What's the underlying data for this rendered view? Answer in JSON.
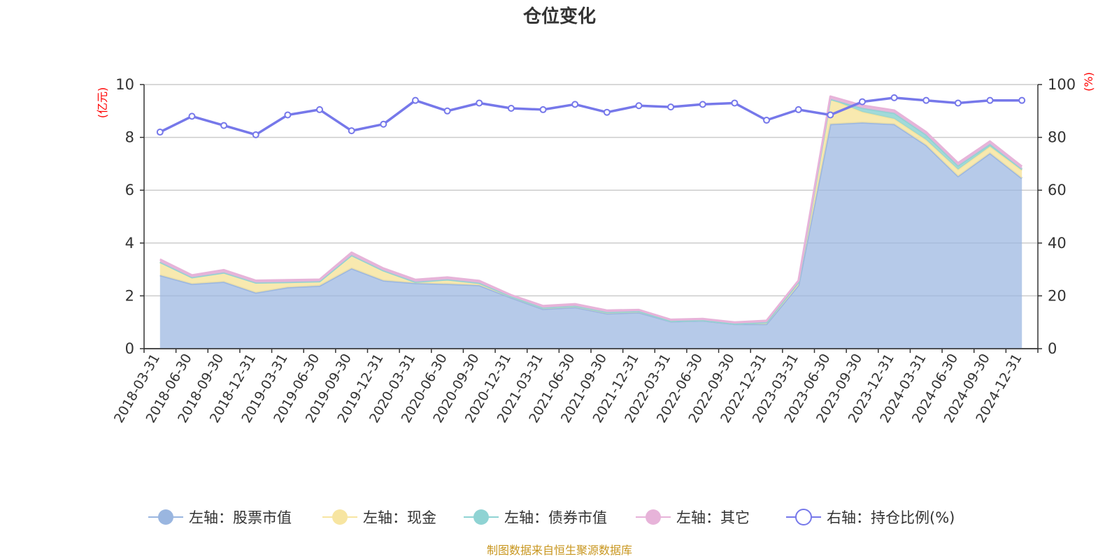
{
  "chart_data": {
    "type": "area",
    "title": "仓位变化",
    "left_axis_unit": "(亿元)",
    "right_axis_unit": "(%)",
    "left_ylim": [
      0,
      10
    ],
    "left_ticks": [
      "0",
      "2",
      "4",
      "6",
      "8",
      "10"
    ],
    "right_ylim": [
      0,
      100
    ],
    "right_ticks": [
      "0",
      "20",
      "40",
      "60",
      "80",
      "100"
    ],
    "categories": [
      "2018-03-31",
      "2018-06-30",
      "2018-09-30",
      "2018-12-31",
      "2019-03-31",
      "2019-06-30",
      "2019-09-30",
      "2019-12-31",
      "2020-03-31",
      "2020-06-30",
      "2020-09-30",
      "2020-12-31",
      "2021-03-31",
      "2021-06-30",
      "2021-09-30",
      "2021-12-31",
      "2022-03-31",
      "2022-06-30",
      "2022-09-30",
      "2022-12-31",
      "2023-03-31",
      "2023-06-30",
      "2023-09-30",
      "2023-12-31",
      "2024-03-31",
      "2024-06-30",
      "2024-09-30",
      "2024-12-31"
    ],
    "series": [
      {
        "name": "左轴：股票市值",
        "axis": "left",
        "type": "area",
        "color": "#9ab6e0",
        "values": [
          2.78,
          2.45,
          2.53,
          2.12,
          2.32,
          2.38,
          3.04,
          2.58,
          2.48,
          2.45,
          2.4,
          1.93,
          1.5,
          1.57,
          1.33,
          1.37,
          1.03,
          1.06,
          0.93,
          0.93,
          2.4,
          8.5,
          8.56,
          8.5,
          7.7,
          6.53,
          7.4,
          6.45
        ]
      },
      {
        "name": "左轴：现金",
        "axis": "left",
        "type": "area",
        "color": "#f7e5a1",
        "values": [
          0.5,
          0.25,
          0.35,
          0.38,
          0.2,
          0.17,
          0.5,
          0.38,
          0.05,
          0.17,
          0.09,
          0.05,
          0.05,
          0.05,
          0.05,
          0.05,
          0.02,
          0.02,
          0.02,
          0.07,
          0.12,
          0.95,
          0.4,
          0.2,
          0.2,
          0.25,
          0.25,
          0.3
        ]
      },
      {
        "name": "左轴：债券市值",
        "axis": "left",
        "type": "area",
        "color": "#8fd3d3",
        "values": [
          0,
          0,
          0,
          0,
          0,
          0,
          0,
          0,
          0,
          0,
          0,
          0,
          0,
          0,
          0,
          0,
          0,
          0,
          0,
          0,
          0,
          0,
          0.15,
          0.22,
          0.2,
          0.15,
          0.1,
          0.05
        ]
      },
      {
        "name": "左轴：其它",
        "axis": "left",
        "type": "area",
        "color": "#e7b3d9",
        "values": [
          0.1,
          0.08,
          0.1,
          0.08,
          0.08,
          0.07,
          0.1,
          0.08,
          0.08,
          0.08,
          0.08,
          0.05,
          0.07,
          0.07,
          0.07,
          0.05,
          0.05,
          0.05,
          0.05,
          0.06,
          0.06,
          0.1,
          0.1,
          0.1,
          0.1,
          0.1,
          0.1,
          0.1
        ]
      },
      {
        "name": "右轴：持仓比例(%)",
        "axis": "right",
        "type": "line",
        "color": "#7678ea",
        "values": [
          82,
          88,
          84.5,
          81,
          88.5,
          90.5,
          82.5,
          85,
          94,
          90,
          93,
          91,
          90.5,
          92.5,
          89.5,
          92,
          91.5,
          92.5,
          93,
          86.5,
          90.5,
          88.5,
          93.5,
          95,
          94,
          93,
          94,
          94
        ]
      }
    ],
    "legend_position": "bottom",
    "grid": true
  },
  "footer": {
    "source": "制图数据来自恒生聚源数据库"
  }
}
